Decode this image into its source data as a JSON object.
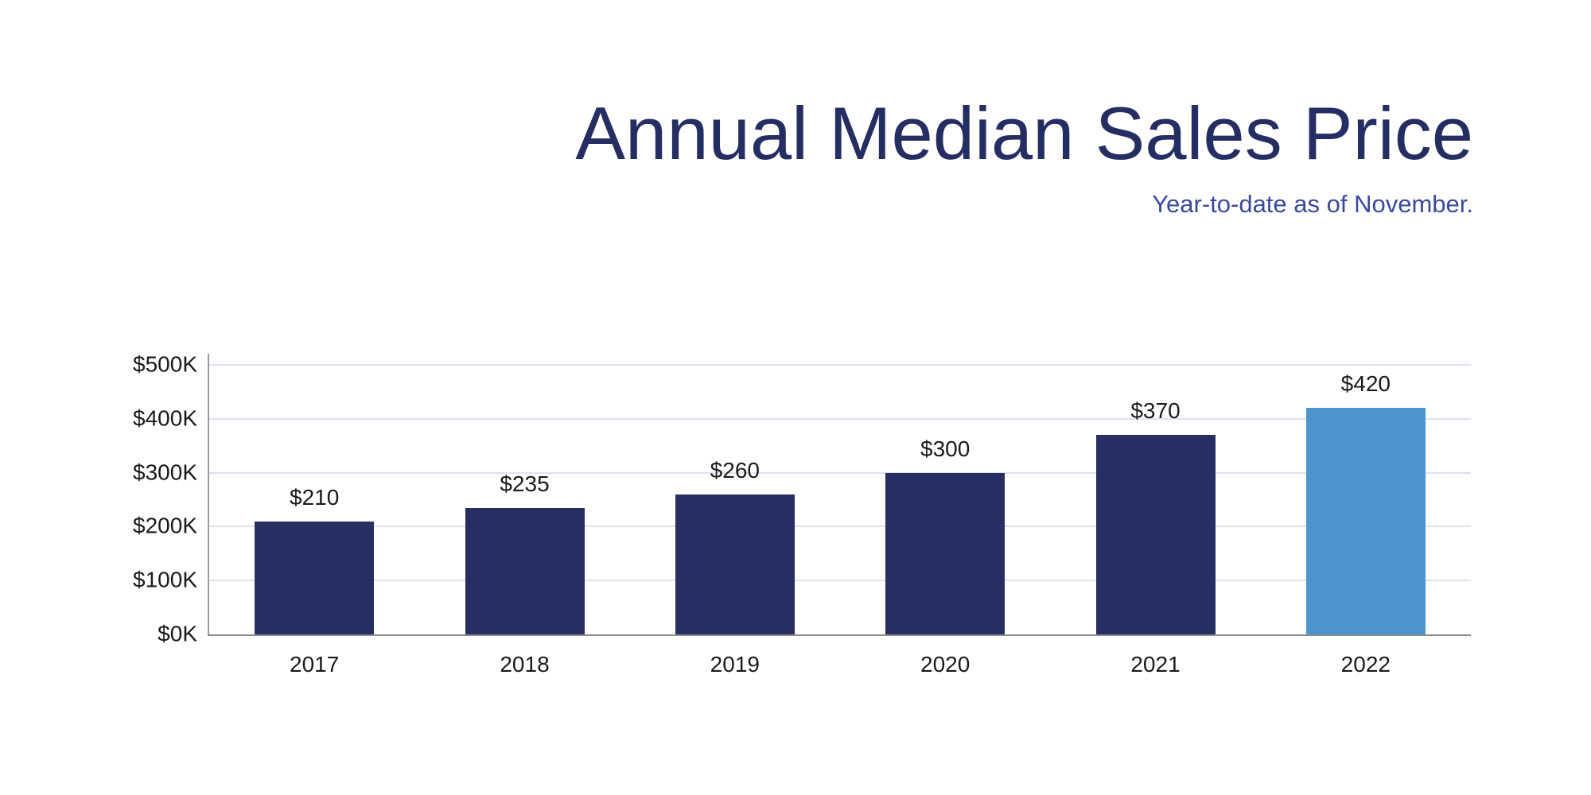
{
  "header": {
    "title": "Annual Median Sales Price",
    "subtitle": "Year-to-date as of November."
  },
  "chart_data": {
    "type": "bar",
    "title": "Annual Median Sales Price",
    "subtitle": "Year-to-date as of November.",
    "categories": [
      "2017",
      "2018",
      "2019",
      "2020",
      "2021",
      "2022"
    ],
    "values": [
      210,
      235,
      260,
      300,
      370,
      420
    ],
    "value_labels": [
      "$210",
      "$235",
      "$260",
      "$300",
      "$370",
      "$420"
    ],
    "values_unit": "thousand dollars",
    "xlabel": "",
    "ylabel": "",
    "ylim": [
      0,
      500
    ],
    "y_ticks": [
      0,
      100,
      200,
      300,
      400,
      500
    ],
    "y_tick_labels": [
      "$0K",
      "$100K",
      "$200K",
      "$300K",
      "$400K",
      "$500K"
    ],
    "grid": true,
    "legend": false,
    "highlight_index": 5
  },
  "colors": {
    "title_text": "#252E62",
    "subtitle_text": "#3A4A9B",
    "bar_default": "#272F62",
    "bar_highlight": "#4E94CF",
    "tick_text": "#1A1A1A",
    "gridline": "#DDE3EF",
    "x_axis_line": "#8C8C8C",
    "y_axis_line": "#9A9A9A"
  }
}
